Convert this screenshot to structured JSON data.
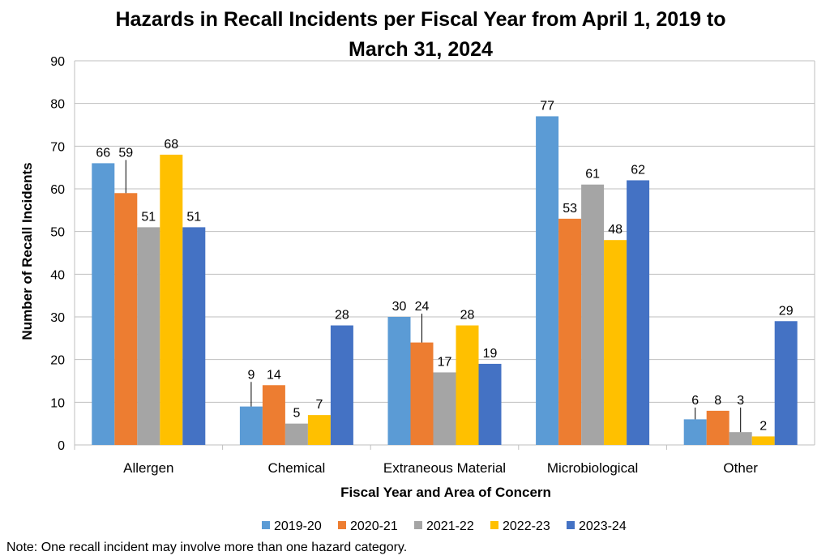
{
  "chart_data": {
    "type": "bar",
    "title_lines": [
      "Hazards in Recall Incidents per Fiscal Year from April 1, 2019 to",
      "March 31, 2024"
    ],
    "xlabel": "Fiscal Year and Area of Concern",
    "ylabel": "Number of Recall Incidents",
    "ylim": [
      0,
      90
    ],
    "yticks": [
      0,
      10,
      20,
      30,
      40,
      50,
      60,
      70,
      80,
      90
    ],
    "grid": true,
    "legend": "bottom",
    "categories": [
      "Allergen",
      "Chemical",
      "Extraneous Material",
      "Microbiological",
      "Other"
    ],
    "series": [
      {
        "name": "2019-20",
        "color": "#5b9bd5",
        "values": [
          66,
          9,
          30,
          77,
          6
        ]
      },
      {
        "name": "2020-21",
        "color": "#ed7d31",
        "values": [
          59,
          14,
          24,
          53,
          8
        ]
      },
      {
        "name": "2021-22",
        "color": "#a5a5a5",
        "values": [
          51,
          5,
          17,
          61,
          3
        ]
      },
      {
        "name": "2022-23",
        "color": "#ffc000",
        "values": [
          68,
          7,
          28,
          48,
          2
        ]
      },
      {
        "name": "2023-24",
        "color": "#4472c4",
        "values": [
          51,
          28,
          19,
          62,
          29
        ]
      }
    ]
  },
  "note": "Note: One recall incident may involve more than one hazard category."
}
